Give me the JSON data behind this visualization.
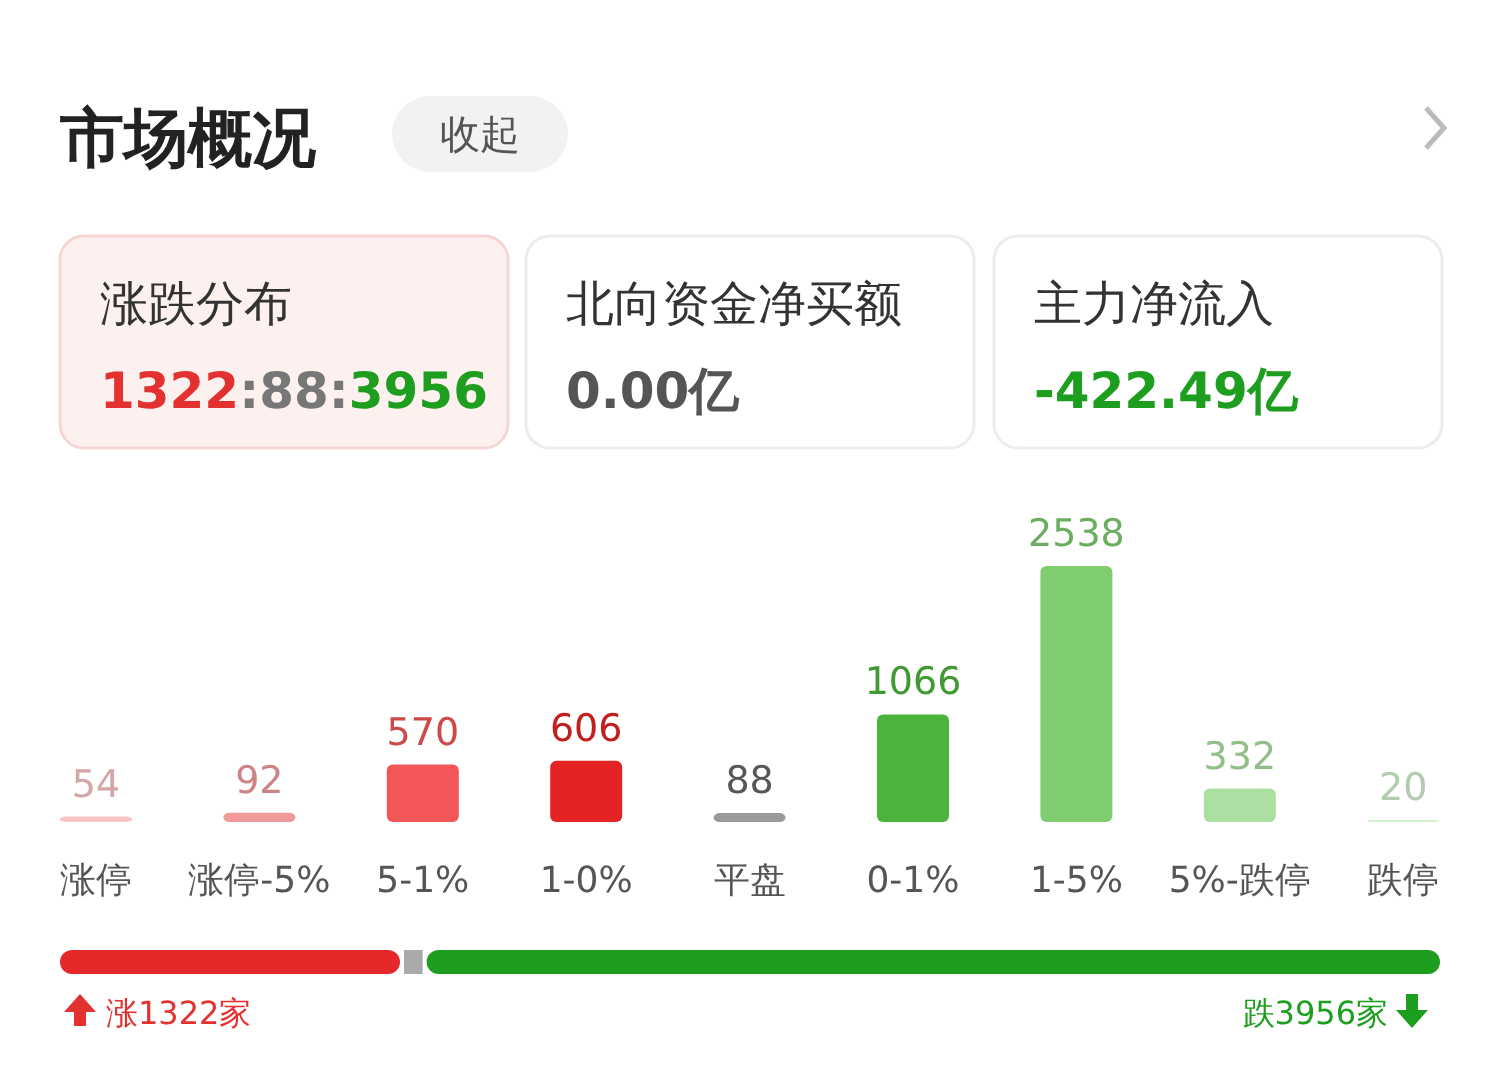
{
  "chart_data": [
    {
      "type": "other",
      "title": "市场概况",
      "annotations": [
        "收起",
        "涨跌分布",
        "1322:88:3956",
        "北向资金净买额",
        "0.00亿",
        "主力净流入",
        "-422.49亿"
      ]
    },
    {
      "type": "bar",
      "categories": [
        "涨停",
        "涨停-5%",
        "5-1%",
        "1-0%",
        "平盘",
        "0-1%",
        "1-5%",
        "5%-跌停",
        "跌停"
      ],
      "values": [
        54,
        92,
        570,
        606,
        88,
        1066,
        2538,
        332,
        20
      ],
      "colors": [
        "#f8c4c4",
        "#f09a9a",
        "#f25656",
        "#e42424",
        "#9a9a9a",
        "#4cb43c",
        "#7fcd70",
        "#acdfa2",
        "#d3efcd"
      ],
      "data_labels": true
    },
    {
      "type": "other",
      "annotations": [
        "涨1322家",
        "跌3956家"
      ]
    }
  ]
}
